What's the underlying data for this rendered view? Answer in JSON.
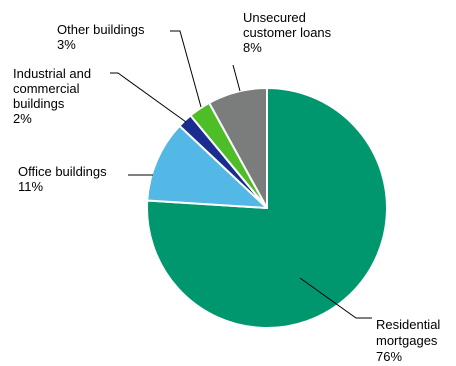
{
  "chart_data": {
    "type": "pie",
    "title": "",
    "start_angle_deg": 0,
    "direction": "clockwise",
    "slices": [
      {
        "label_lines": [
          "Residential",
          "mortgages",
          "76%"
        ],
        "value": 76,
        "color": "#00976e"
      },
      {
        "label_lines": [
          "Office buildings",
          "11%"
        ],
        "value": 11,
        "color": "#53b8e6"
      },
      {
        "label_lines": [
          "Industrial and",
          "commercial",
          "buildings",
          "2%"
        ],
        "value": 2,
        "color": "#1a2c8f"
      },
      {
        "label_lines": [
          "Other buildings",
          "3%"
        ],
        "value": 3,
        "color": "#4dbd28"
      },
      {
        "label_lines": [
          "Unsecured",
          "customer loans",
          "8%"
        ],
        "value": 8,
        "color": "#7b7d7d"
      }
    ]
  }
}
